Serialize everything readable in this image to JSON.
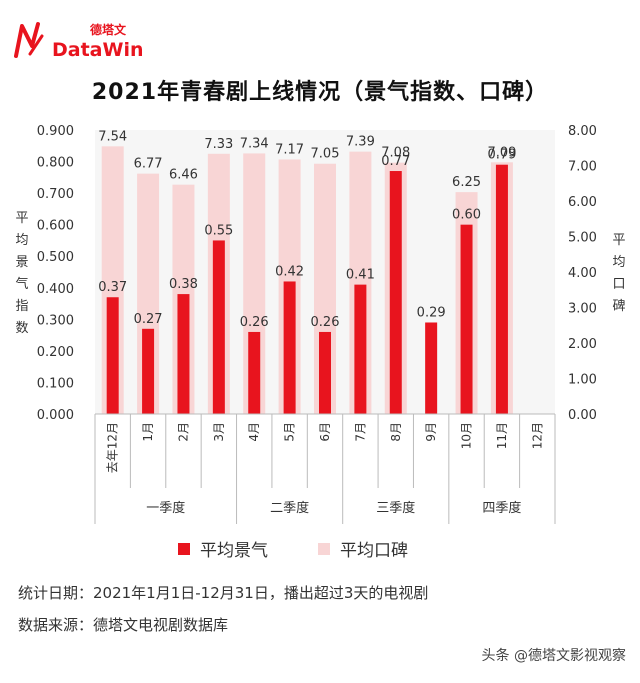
{
  "brand": {
    "cn": "德塔文",
    "en": "DataWin"
  },
  "chart_data": {
    "type": "bar",
    "title": "2021年青春剧上线情况（景气指数、口碑）",
    "categories": [
      "去年12月",
      "1月",
      "2月",
      "3月",
      "4月",
      "5月",
      "6月",
      "7月",
      "8月",
      "9月",
      "10月",
      "11月",
      "12月"
    ],
    "quarters": [
      "一季度",
      "二季度",
      "三季度",
      "四季度"
    ],
    "series": [
      {
        "name": "平均景气",
        "axis": "left",
        "color": "#e8141e",
        "values": [
          0.37,
          0.27,
          0.38,
          0.55,
          0.26,
          0.42,
          0.26,
          0.41,
          0.77,
          0.29,
          0.6,
          0.79,
          null
        ],
        "labels": [
          "0.37",
          "0.27",
          "0.38",
          "0.55",
          "0.26",
          "0.42",
          "0.26",
          "0.41",
          "0.77",
          "0.29",
          "0.60",
          "0.79",
          ""
        ]
      },
      {
        "name": "平均口碑",
        "axis": "right",
        "color": "#f8d5d5",
        "values": [
          7.54,
          6.77,
          6.46,
          7.33,
          7.34,
          7.17,
          7.05,
          7.39,
          7.08,
          null,
          6.25,
          7.09,
          null
        ],
        "labels": [
          "7.54",
          "6.77",
          "6.46",
          "7.33",
          "7.34",
          "7.17",
          "7.05",
          "7.39",
          "7.08",
          "",
          "6.25",
          "7.09",
          ""
        ]
      }
    ],
    "ylabel_left": "平均景气指数",
    "ylabel_right": "平均口碑",
    "ylim_left": [
      0,
      0.9
    ],
    "ylim_right": [
      0,
      8
    ],
    "yticks_left": [
      "0.000",
      "0.100",
      "0.200",
      "0.300",
      "0.400",
      "0.500",
      "0.600",
      "0.700",
      "0.800",
      "0.900"
    ],
    "yticks_right": [
      "0.00",
      "1.00",
      "2.00",
      "3.00",
      "4.00",
      "5.00",
      "6.00",
      "7.00",
      "8.00"
    ],
    "legend_position": "bottom",
    "grid": false
  },
  "legend": [
    {
      "label": "平均景气",
      "color": "#e8141e"
    },
    {
      "label": "平均口碑",
      "color": "#f8d5d5"
    }
  ],
  "notes": {
    "stat_date": "统计日期：2021年1月1日-12月31日，播出超过3天的电视剧",
    "source": "数据来源：德塔文电视剧数据库"
  },
  "watermark": "头条 @德塔文影视观察"
}
